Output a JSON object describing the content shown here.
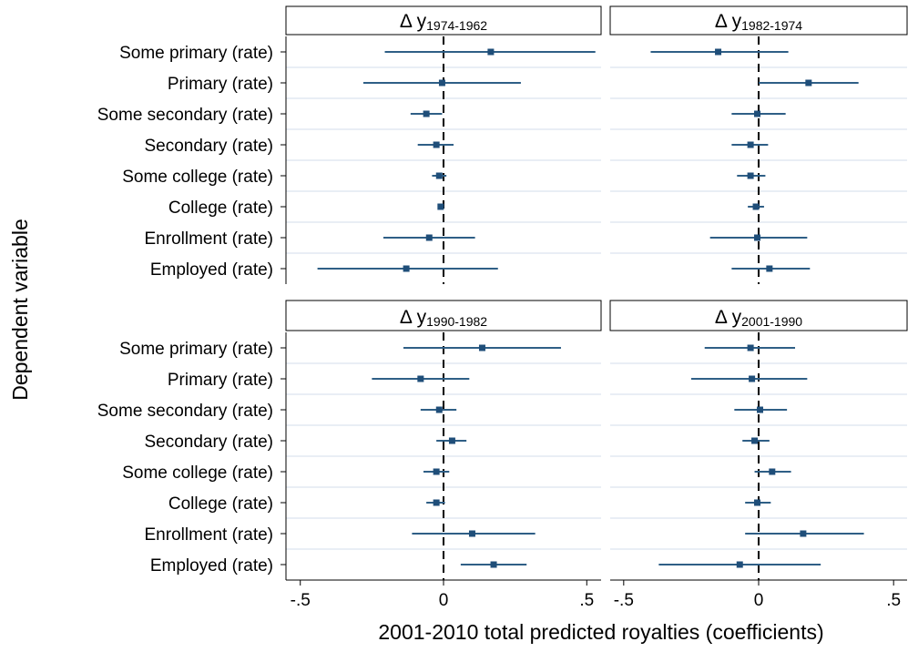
{
  "chart_data": {
    "type": "coefficient-plot",
    "ylabel": "Dependent variable",
    "xlabel": "2001-2010 total predicted royalties (coefficients)",
    "xlim": [
      -0.55,
      0.55
    ],
    "x_ticks": [
      -0.5,
      0,
      0.5
    ],
    "x_tick_labels": [
      "-.5",
      "0",
      ".5"
    ],
    "reference_line": 0,
    "categories": [
      "Some primary (rate)",
      "Primary (rate)",
      "Some secondary (rate)",
      "Secondary (rate)",
      "Some college (rate)",
      "College (rate)",
      "Enrollment (rate)",
      "Employed (rate)"
    ],
    "colors": {
      "estimate": "#1f4e79",
      "ci": "#2f5f86",
      "header_border": "#000000",
      "grid": "#e9eef5"
    },
    "panels": [
      {
        "delta_symbol": "Δ",
        "var": "y",
        "subscript": "1974-1962",
        "estimates": [
          0.165,
          -0.005,
          -0.06,
          -0.025,
          -0.015,
          -0.01,
          -0.05,
          -0.13
        ],
        "ci_low": [
          -0.205,
          -0.28,
          -0.115,
          -0.09,
          -0.04,
          -0.02,
          -0.21,
          -0.44
        ],
        "ci_high": [
          0.53,
          0.27,
          -0.005,
          0.035,
          0.01,
          0.0,
          0.11,
          0.19
        ]
      },
      {
        "delta_symbol": "Δ",
        "var": "y",
        "subscript": "1982-1974",
        "estimates": [
          -0.15,
          0.185,
          -0.005,
          -0.03,
          -0.03,
          -0.01,
          -0.005,
          0.04
        ],
        "ci_low": [
          -0.4,
          0.0,
          -0.1,
          -0.1,
          -0.08,
          -0.04,
          -0.18,
          -0.1
        ],
        "ci_high": [
          0.11,
          0.37,
          0.1,
          0.035,
          0.025,
          0.02,
          0.18,
          0.19
        ]
      },
      {
        "delta_symbol": "Δ",
        "var": "y",
        "subscript": "1990-1982",
        "estimates": [
          0.135,
          -0.08,
          -0.015,
          0.03,
          -0.025,
          -0.025,
          0.1,
          0.175
        ],
        "ci_low": [
          -0.14,
          -0.25,
          -0.08,
          -0.025,
          -0.07,
          -0.06,
          -0.11,
          0.06
        ],
        "ci_high": [
          0.41,
          0.09,
          0.045,
          0.08,
          0.02,
          0.005,
          0.32,
          0.29
        ]
      },
      {
        "delta_symbol": "Δ",
        "var": "y",
        "subscript": "2001-1990",
        "estimates": [
          -0.03,
          -0.025,
          0.005,
          -0.015,
          0.05,
          -0.005,
          0.165,
          -0.07
        ],
        "ci_low": [
          -0.2,
          -0.25,
          -0.09,
          -0.06,
          -0.015,
          -0.05,
          -0.05,
          -0.37
        ],
        "ci_high": [
          0.135,
          0.18,
          0.105,
          0.04,
          0.12,
          0.045,
          0.39,
          0.23
        ]
      }
    ]
  }
}
